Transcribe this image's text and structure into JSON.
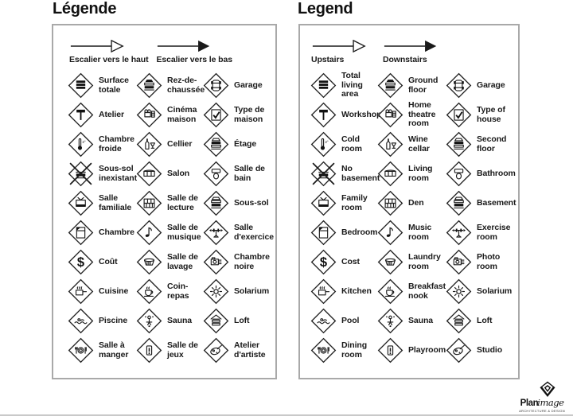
{
  "panels": [
    {
      "title": "Légende",
      "arrows": [
        {
          "label": "Escalier vers le haut",
          "style": "open"
        },
        {
          "label": "Escalier vers le bas",
          "style": "filled"
        }
      ],
      "items": [
        {
          "icon": "total-living-area-icon",
          "label": "Surface\ntotale"
        },
        {
          "icon": "ground-floor-icon",
          "label": "Rez-de-\nchaussée"
        },
        {
          "icon": "garage-icon",
          "label": "Garage"
        },
        {
          "icon": "workshop-icon",
          "label": "Atelier"
        },
        {
          "icon": "home-theatre-icon",
          "label": "Cinéma\nmaison"
        },
        {
          "icon": "type-of-house-icon",
          "label": "Type de\nmaison"
        },
        {
          "icon": "cold-room-icon",
          "label": "Chambre\nfroide"
        },
        {
          "icon": "wine-cellar-icon",
          "label": "Cellier"
        },
        {
          "icon": "second-floor-icon",
          "label": "Étage"
        },
        {
          "icon": "no-basement-icon",
          "label": "Sous-sol\ninexistant"
        },
        {
          "icon": "living-room-icon",
          "label": "Salon"
        },
        {
          "icon": "bathroom-icon",
          "label": "Salle de\nbain"
        },
        {
          "icon": "family-room-icon",
          "label": "Salle\nfamiliale"
        },
        {
          "icon": "den-icon",
          "label": "Salle de\nlecture"
        },
        {
          "icon": "basement-icon",
          "label": "Sous-sol"
        },
        {
          "icon": "bedroom-icon",
          "label": "Chambre"
        },
        {
          "icon": "music-room-icon",
          "label": "Salle de\nmusique"
        },
        {
          "icon": "exercise-room-icon",
          "label": "Salle\nd'exercice"
        },
        {
          "icon": "cost-icon",
          "label": "Coût"
        },
        {
          "icon": "laundry-room-icon",
          "label": "Salle de\nlavage"
        },
        {
          "icon": "photo-room-icon",
          "label": "Chambre\nnoire"
        },
        {
          "icon": "kitchen-icon",
          "label": "Cuisine"
        },
        {
          "icon": "breakfast-nook-icon",
          "label": "Coin-\nrepas"
        },
        {
          "icon": "solarium-icon",
          "label": "Solarium"
        },
        {
          "icon": "pool-icon",
          "label": "Piscine"
        },
        {
          "icon": "sauna-icon",
          "label": "Sauna"
        },
        {
          "icon": "loft-icon",
          "label": "Loft"
        },
        {
          "icon": "dining-room-icon",
          "label": "Salle à\nmanger"
        },
        {
          "icon": "playroom-icon",
          "label": "Salle de\njeux"
        },
        {
          "icon": "studio-icon",
          "label": "Atelier\nd'artiste"
        }
      ]
    },
    {
      "title": "Legend",
      "arrows": [
        {
          "label": "Upstairs",
          "style": "open"
        },
        {
          "label": "Downstairs",
          "style": "filled"
        }
      ],
      "items": [
        {
          "icon": "total-living-area-icon",
          "label": "Total\nliving\narea"
        },
        {
          "icon": "ground-floor-icon",
          "label": "Ground\nfloor"
        },
        {
          "icon": "garage-icon",
          "label": "Garage"
        },
        {
          "icon": "workshop-icon",
          "label": "Workshop"
        },
        {
          "icon": "home-theatre-icon",
          "label": "Home\ntheatre\nroom"
        },
        {
          "icon": "type-of-house-icon",
          "label": "Type of\nhouse"
        },
        {
          "icon": "cold-room-icon",
          "label": "Cold\nroom"
        },
        {
          "icon": "wine-cellar-icon",
          "label": "Wine\ncellar"
        },
        {
          "icon": "second-floor-icon",
          "label": "Second\nfloor"
        },
        {
          "icon": "no-basement-icon",
          "label": "No\nbasement"
        },
        {
          "icon": "living-room-icon",
          "label": "Living\nroom"
        },
        {
          "icon": "bathroom-icon",
          "label": "Bathroom"
        },
        {
          "icon": "family-room-icon",
          "label": "Family\nroom"
        },
        {
          "icon": "den-icon",
          "label": "Den"
        },
        {
          "icon": "basement-icon",
          "label": "Basement"
        },
        {
          "icon": "bedroom-icon",
          "label": "Bedroom"
        },
        {
          "icon": "music-room-icon",
          "label": "Music\nroom"
        },
        {
          "icon": "exercise-room-icon",
          "label": "Exercise\nroom"
        },
        {
          "icon": "cost-icon",
          "label": "Cost"
        },
        {
          "icon": "laundry-room-icon",
          "label": "Laundry\nroom"
        },
        {
          "icon": "photo-room-icon",
          "label": "Photo\nroom"
        },
        {
          "icon": "kitchen-icon",
          "label": "Kitchen"
        },
        {
          "icon": "breakfast-nook-icon",
          "label": "Breakfast\nnook"
        },
        {
          "icon": "solarium-icon",
          "label": "Solarium"
        },
        {
          "icon": "pool-icon",
          "label": "Pool"
        },
        {
          "icon": "sauna-icon",
          "label": "Sauna"
        },
        {
          "icon": "loft-icon",
          "label": "Loft"
        },
        {
          "icon": "dining-room-icon",
          "label": "Dining\nroom"
        },
        {
          "icon": "playroom-icon",
          "label": "Playroom"
        },
        {
          "icon": "studio-icon",
          "label": "Studio"
        }
      ]
    }
  ],
  "logo": {
    "brand_bold": "Plan",
    "brand_script": "image",
    "tagline": "ARCHITECTURE & DESIGN"
  },
  "colors": {
    "ink": "#1a1a1a",
    "panel_border": "#a9a9a9"
  }
}
